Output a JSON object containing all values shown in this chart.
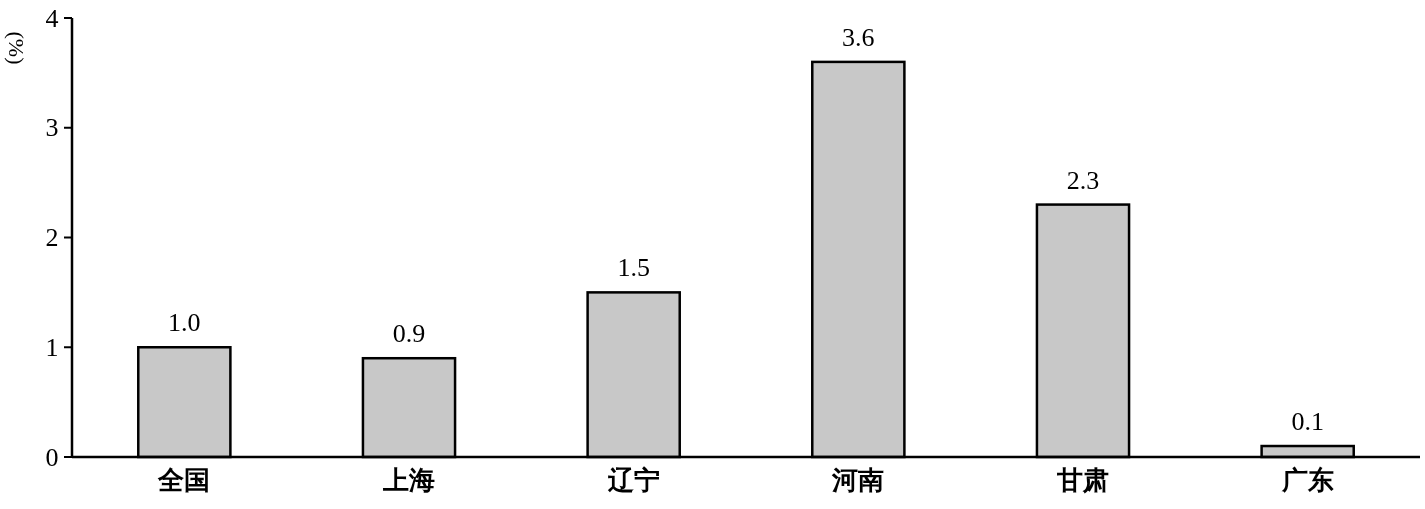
{
  "chart_data": {
    "type": "bar",
    "ylabel": "(%)",
    "categories": [
      "全国",
      "上海",
      "辽宁",
      "河南",
      "甘肃",
      "广东"
    ],
    "values": [
      1.0,
      0.9,
      1.5,
      3.6,
      2.3,
      0.1
    ],
    "value_labels": [
      "1.0",
      "0.9",
      "1.5",
      "3.6",
      "2.3",
      "0.1"
    ],
    "color": "#c8c8c8",
    "ylim": [
      0,
      4
    ],
    "yticks": [
      0,
      1,
      2,
      3,
      4
    ]
  }
}
